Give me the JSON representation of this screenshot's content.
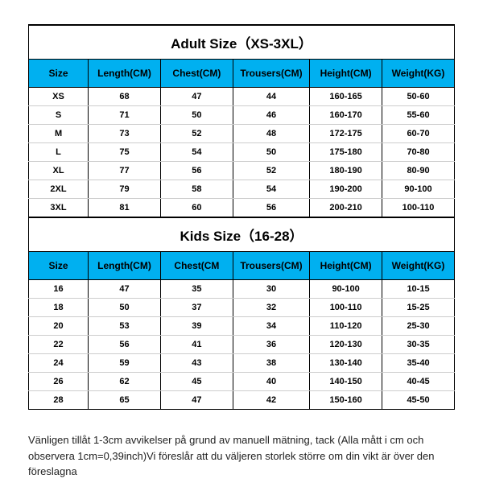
{
  "adult": {
    "title": "Adult Size（XS-3XL）",
    "header_bg": "#00b0f0",
    "columns": [
      "Size",
      "Length(CM)",
      "Chest(CM)",
      "Trousers(CM)",
      "Height(CM)",
      "Weight(KG)"
    ],
    "rows": [
      [
        "XS",
        "68",
        "47",
        "44",
        "160-165",
        "50-60"
      ],
      [
        "S",
        "71",
        "50",
        "46",
        "160-170",
        "55-60"
      ],
      [
        "M",
        "73",
        "52",
        "48",
        "172-175",
        "60-70"
      ],
      [
        "L",
        "75",
        "54",
        "50",
        "175-180",
        "70-80"
      ],
      [
        "XL",
        "77",
        "56",
        "52",
        "180-190",
        "80-90"
      ],
      [
        "2XL",
        "79",
        "58",
        "54",
        "190-200",
        "90-100"
      ],
      [
        "3XL",
        "81",
        "60",
        "56",
        "200-210",
        "100-110"
      ]
    ]
  },
  "kids": {
    "title": "Kids Size（16-28）",
    "header_bg": "#00b0f0",
    "columns": [
      "Size",
      "Length(CM)",
      "Chest(CM",
      "Trousers(CM)",
      "Height(CM)",
      "Weight(KG)"
    ],
    "rows": [
      [
        "16",
        "47",
        "35",
        "30",
        "90-100",
        "10-15"
      ],
      [
        "18",
        "50",
        "37",
        "32",
        "100-110",
        "15-25"
      ],
      [
        "20",
        "53",
        "39",
        "34",
        "110-120",
        "25-30"
      ],
      [
        "22",
        "56",
        "41",
        "36",
        "120-130",
        "30-35"
      ],
      [
        "24",
        "59",
        "43",
        "38",
        "130-140",
        "35-40"
      ],
      [
        "26",
        "62",
        "45",
        "40",
        "140-150",
        "40-45"
      ],
      [
        "28",
        "65",
        "47",
        "42",
        "150-160",
        "45-50"
      ]
    ]
  },
  "note": "Vänligen tillåt 1-3cm avvikelser på grund av manuell mätning, tack (Alla mått i cm och observera 1cm=0,39inch)Vi föreslår att du väljeren storlek större om din vikt är över den föreslagna"
}
